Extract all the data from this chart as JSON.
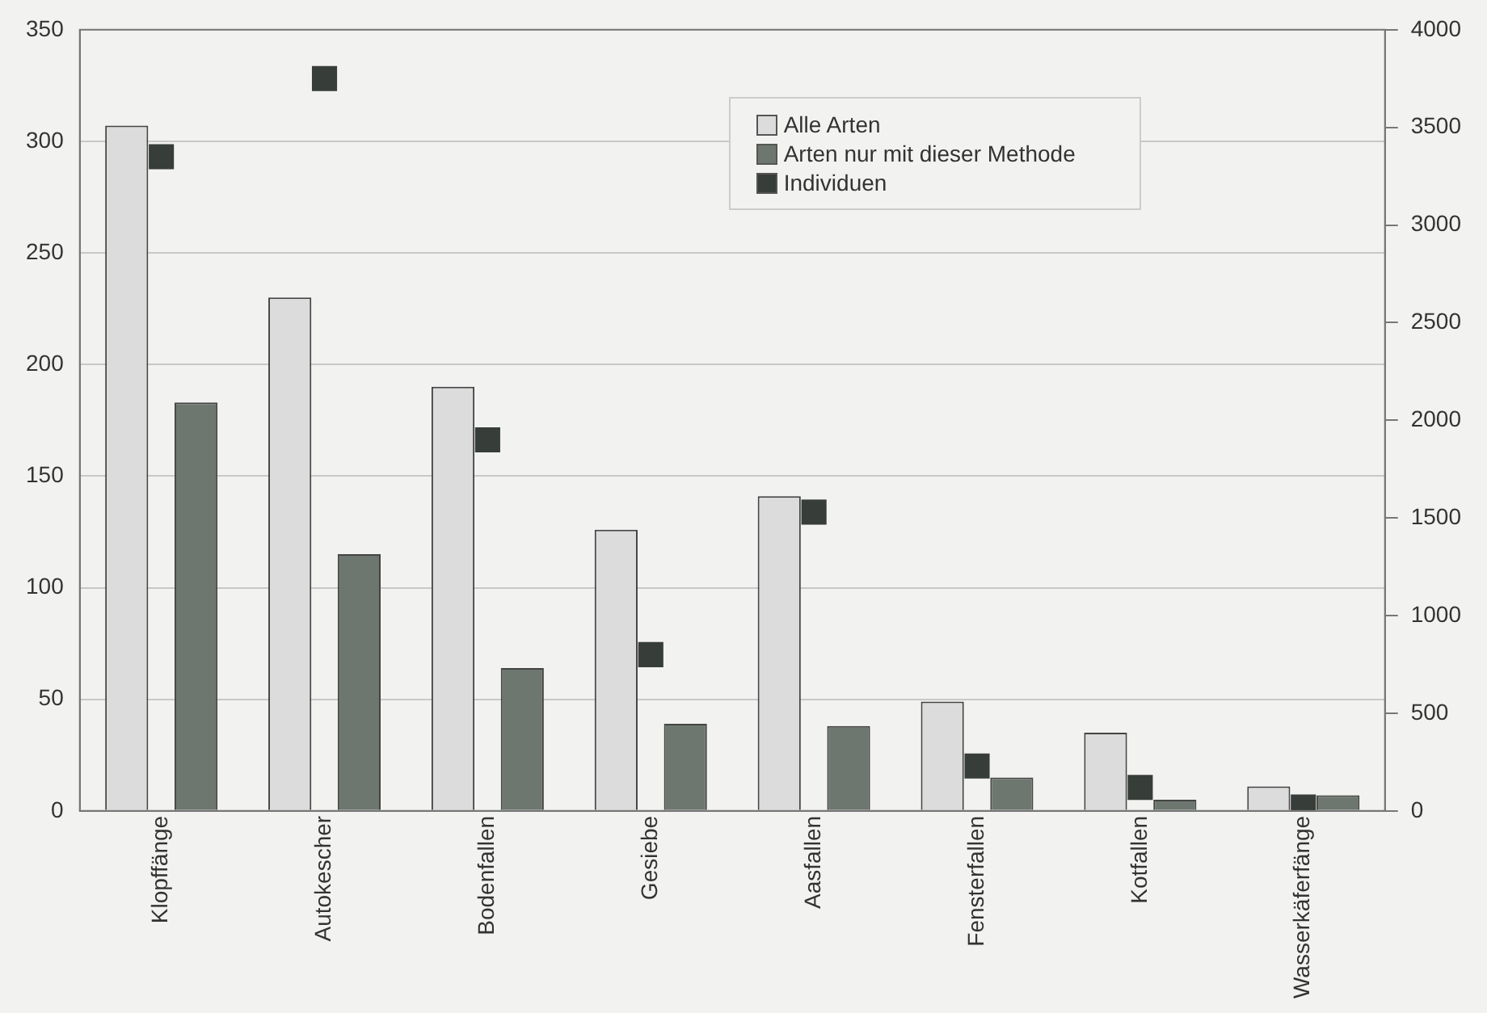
{
  "chart_data": {
    "type": "bar",
    "categories": [
      "Klopffänge",
      "Autokescher",
      "Bodenfallen",
      "Gesiebe",
      "Aasfallen",
      "Fensterfallen",
      "Kotfallen",
      "Wasserkäferfänge"
    ],
    "series": [
      {
        "name": "Alle Arten",
        "color": "#dcdcdc",
        "values": [
          307,
          230,
          190,
          126,
          141,
          49,
          35,
          11
        ]
      },
      {
        "name": "Arten nur mit dieser Methode",
        "color": "#6e776f",
        "values": [
          183,
          115,
          64,
          39,
          38,
          15,
          5,
          7
        ]
      },
      {
        "name": "Individuen",
        "type": "scatter",
        "axis": "y2",
        "marker": "square",
        "color": "#373d38",
        "values": [
          3350,
          3750,
          1900,
          800,
          1530,
          230,
          120,
          20
        ]
      }
    ],
    "ylim": [
      0,
      350
    ],
    "yticks": [
      0,
      50,
      100,
      150,
      200,
      250,
      300,
      350
    ],
    "y2lim": [
      0,
      4000
    ],
    "y2ticks": [
      0,
      500,
      1000,
      1500,
      2000,
      2500,
      3000,
      3500,
      4000
    ],
    "grid": "y",
    "legend": "top right"
  }
}
